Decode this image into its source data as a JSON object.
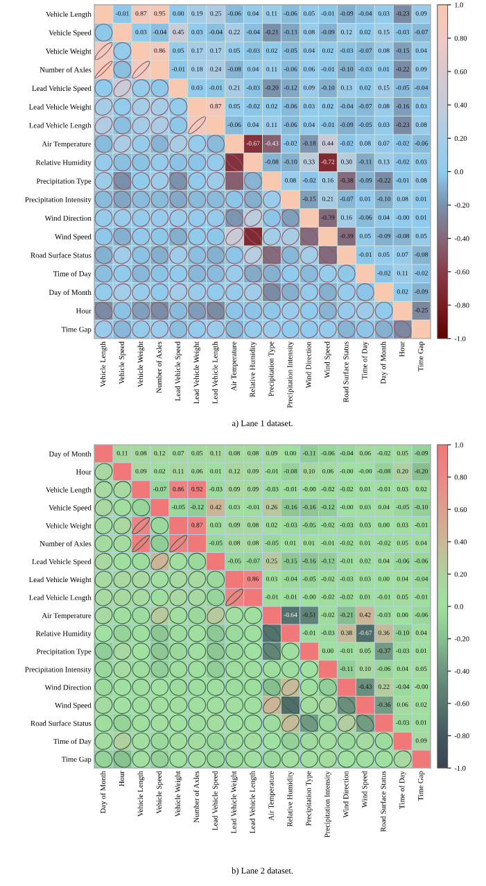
{
  "chart_data": [
    {
      "type": "heatmap",
      "categories": [
        "Vehicle Length",
        "Vehicle Speed",
        "Vehicle Weight",
        "Number of Axles",
        "Lead Vehicle Speed",
        "Lead Vehicle Weight",
        "Lead Vehicle Length",
        "Air Temperature",
        "Relative Humidity",
        "Precipitation Type",
        "Precipitation Intensity",
        "Wind Direction",
        "Wind Speed",
        "Road Surface Status",
        "Time of Day",
        "Day of Month",
        "Hour",
        "Time Gap"
      ],
      "y_categories": [
        "Vehicle Length",
        "Vehicle Speed",
        "Vehicle Weight",
        "Number of Axles",
        "Lead Vehicle Speed",
        "Lead Vehicle Weight",
        "Lead Vehicle Length",
        "Air Temperature",
        "Relative Humidity",
        "Precipitation Type",
        "Precipitation Intensity",
        "Wind Direction",
        "Wind Speed",
        "Road Surface Status",
        "Time of Day",
        "Day of Month",
        "Hour",
        "Time Gap"
      ],
      "cells": [
        [
          1,
          -0.01,
          0.87,
          0.95,
          0.0,
          0.19,
          0.25,
          -0.06,
          0.04,
          0.11,
          -0.06,
          0.05,
          -0.01,
          -0.09,
          -0.04,
          0.03,
          -0.23,
          0.09
        ],
        [
          -0.01,
          1,
          0.03,
          -0.04,
          0.45,
          0.03,
          -0.04,
          0.22,
          -0.04,
          -0.21,
          -0.13,
          0.08,
          -0.09,
          0.12,
          0.02,
          0.15,
          -0.03,
          -0.07
        ],
        [
          0.87,
          0.03,
          1,
          0.86,
          0.05,
          0.17,
          0.17,
          0.05,
          -0.03,
          0.02,
          -0.05,
          0.04,
          0.02,
          -0.03,
          -0.07,
          0.08,
          -0.15,
          0.04
        ],
        [
          0.95,
          -0.04,
          0.86,
          1,
          -0.01,
          0.18,
          0.24,
          -0.08,
          0.04,
          0.11,
          -0.06,
          0.06,
          -0.01,
          -0.1,
          -0.03,
          0.01,
          -0.22,
          0.09
        ],
        [
          0.0,
          0.45,
          0.05,
          -0.01,
          1,
          0.03,
          -0.01,
          0.21,
          -0.03,
          -0.2,
          -0.12,
          0.09,
          -0.1,
          0.13,
          0.02,
          0.15,
          -0.05,
          -0.04
        ],
        [
          0.19,
          0.03,
          0.17,
          0.18,
          0.03,
          1,
          0.87,
          0.05,
          -0.02,
          0.02,
          -0.06,
          0.03,
          0.02,
          -0.04,
          -0.07,
          0.08,
          -0.16,
          0.03
        ],
        [
          0.25,
          -0.04,
          0.17,
          0.24,
          -0.01,
          0.87,
          1,
          -0.06,
          0.04,
          0.11,
          -0.06,
          0.04,
          -0.01,
          -0.09,
          -0.05,
          0.03,
          -0.23,
          0.08
        ],
        [
          -0.06,
          0.22,
          0.05,
          -0.08,
          0.21,
          0.05,
          -0.06,
          1,
          -0.67,
          -0.43,
          -0.02,
          -0.18,
          0.44,
          -0.02,
          0.08,
          0.07,
          -0.02,
          -0.06
        ],
        [
          0.04,
          -0.04,
          -0.03,
          0.04,
          -0.03,
          -0.02,
          0.04,
          -0.67,
          1,
          -0.08,
          -0.1,
          0.33,
          -0.72,
          0.3,
          -0.11,
          0.13,
          -0.02,
          0.03
        ],
        [
          0.11,
          -0.21,
          0.02,
          0.11,
          -0.2,
          0.02,
          0.11,
          -0.43,
          -0.08,
          1,
          0.08,
          -0.02,
          0.16,
          -0.38,
          -0.09,
          -0.22,
          -0.01,
          0.08
        ],
        [
          -0.06,
          -0.13,
          -0.05,
          -0.06,
          -0.12,
          -0.06,
          -0.06,
          -0.02,
          -0.1,
          0.08,
          1,
          -0.15,
          0.21,
          -0.07,
          0.01,
          -0.1,
          0.08,
          0.01
        ],
        [
          0.05,
          0.08,
          0.04,
          0.06,
          0.09,
          0.03,
          0.04,
          -0.18,
          0.33,
          -0.02,
          -0.15,
          1,
          -0.39,
          0.16,
          -0.06,
          0.04,
          -0.0,
          0.01
        ],
        [
          -0.01,
          -0.09,
          0.02,
          -0.01,
          -0.1,
          0.02,
          -0.01,
          0.44,
          -0.72,
          0.16,
          0.21,
          -0.39,
          1,
          -0.39,
          0.05,
          -0.09,
          -0.08,
          0.05
        ],
        [
          -0.09,
          0.12,
          -0.03,
          -0.1,
          0.13,
          -0.04,
          -0.09,
          -0.02,
          0.3,
          -0.38,
          -0.07,
          0.16,
          -0.39,
          1,
          -0.01,
          0.05,
          0.07,
          -0.08
        ],
        [
          -0.04,
          0.02,
          -0.07,
          -0.03,
          0.02,
          -0.07,
          -0.05,
          0.08,
          -0.11,
          -0.09,
          0.01,
          -0.06,
          0.05,
          -0.01,
          1,
          -0.02,
          0.11,
          -0.02
        ],
        [
          0.03,
          0.15,
          0.08,
          0.01,
          0.15,
          0.08,
          0.03,
          0.07,
          0.13,
          -0.22,
          -0.1,
          0.04,
          -0.09,
          0.05,
          -0.02,
          1,
          0.02,
          -0.09
        ],
        [
          -0.23,
          -0.03,
          -0.15,
          -0.22,
          -0.05,
          -0.16,
          -0.23,
          -0.02,
          -0.02,
          -0.01,
          0.08,
          -0.0,
          -0.08,
          0.07,
          0.11,
          0.02,
          1,
          -0.25
        ],
        [
          0.09,
          -0.07,
          0.04,
          0.09,
          -0.04,
          0.03,
          0.08,
          -0.06,
          0.03,
          0.08,
          0.01,
          0.01,
          0.05,
          -0.08,
          -0.02,
          -0.09,
          -0.25,
          1
        ]
      ],
      "cell_labels": [
        [
          null,
          "-0.01",
          "0.87",
          "0.95",
          "0.00",
          "0.19",
          "0.25",
          "-0.06",
          "0.04",
          "0.11",
          "-0.06",
          "0.05",
          "-0.01",
          "-0.09",
          "-0.04",
          "0.03",
          "-0.23",
          "0.09"
        ],
        [
          null,
          null,
          "0.03",
          "-0.04",
          "0.45",
          "0.03",
          "-0.04",
          "0.22",
          "-0.04",
          "-0.21",
          "-0.13",
          "0.08",
          "-0.09",
          "0.12",
          "0.02",
          "0.15",
          "-0.03",
          "-0.07"
        ],
        [
          null,
          null,
          null,
          "0.86",
          "0.05",
          "0.17",
          "0.17",
          "0.05",
          "-0.03",
          "0.02",
          "-0.05",
          "0.04",
          "0.02",
          "-0.03",
          "-0.07",
          "0.08",
          "-0.15",
          "0.04"
        ],
        [
          null,
          null,
          null,
          null,
          "-0.01",
          "0.18",
          "0.24",
          "-0.08",
          "0.04",
          "0.11",
          "-0.06",
          "0.06",
          "-0.01",
          "-0.10",
          "-0.03",
          "0.01",
          "-0.22",
          "0.09"
        ],
        [
          null,
          null,
          null,
          null,
          null,
          "0.03",
          "-0.01",
          "0.21",
          "-0.03",
          "-0.20",
          "-0.12",
          "0.09",
          "-0.10",
          "0.13",
          "0.02",
          "0.15",
          "-0.05",
          "-0.04"
        ],
        [
          null,
          null,
          null,
          null,
          null,
          null,
          "0.87",
          "0.05",
          "-0.02",
          "0.02",
          "-0.06",
          "0.03",
          "0.02",
          "-0.04",
          "-0.07",
          "0.08",
          "-0.16",
          "0.03"
        ],
        [
          null,
          null,
          null,
          null,
          null,
          null,
          null,
          "-0.06",
          "0.04",
          "0.11",
          "-0.06",
          "0.04",
          "-0.01",
          "-0.09",
          "-0.05",
          "0.03",
          "-0.23",
          "0.08"
        ],
        [
          null,
          null,
          null,
          null,
          null,
          null,
          null,
          null,
          "-0.67",
          "-0.43",
          "-0.02",
          "-0.18",
          "0.44",
          "-0.02",
          "0.08",
          "0.07",
          "-0.02",
          "-0.06"
        ],
        [
          null,
          null,
          null,
          null,
          null,
          null,
          null,
          null,
          null,
          "-0.08",
          "-0.10",
          "0.33",
          "-0.72",
          "0.30",
          "-0.11",
          "0.13",
          "-0.02",
          "0.03"
        ],
        [
          null,
          null,
          null,
          null,
          null,
          null,
          null,
          null,
          null,
          null,
          "0.08",
          "-0.02",
          "0.16",
          "-0.38",
          "-0.09",
          "-0.22",
          "-0.01",
          "0.08"
        ],
        [
          null,
          null,
          null,
          null,
          null,
          null,
          null,
          null,
          null,
          null,
          null,
          "-0.15",
          "0.21",
          "-0.07",
          "0.01",
          "-0.10",
          "0.08",
          "0.01"
        ],
        [
          null,
          null,
          null,
          null,
          null,
          null,
          null,
          null,
          null,
          null,
          null,
          null,
          "-0.39",
          "0.16",
          "-0.06",
          "0.04",
          "-0.00",
          "0.01"
        ],
        [
          null,
          null,
          null,
          null,
          null,
          null,
          null,
          null,
          null,
          null,
          null,
          null,
          null,
          "-0.39",
          "0.05",
          "-0.09",
          "-0.08",
          "0.05"
        ],
        [
          null,
          null,
          null,
          null,
          null,
          null,
          null,
          null,
          null,
          null,
          null,
          null,
          null,
          null,
          "-0.01",
          "0.05",
          "0.07",
          "-0.08"
        ],
        [
          null,
          null,
          null,
          null,
          null,
          null,
          null,
          null,
          null,
          null,
          null,
          null,
          null,
          null,
          null,
          "-0.02",
          "0.11",
          "-0.02"
        ],
        [
          null,
          null,
          null,
          null,
          null,
          null,
          null,
          null,
          null,
          null,
          null,
          null,
          null,
          null,
          null,
          null,
          "0.02",
          "-0.09"
        ],
        [
          null,
          null,
          null,
          null,
          null,
          null,
          null,
          null,
          null,
          null,
          null,
          null,
          null,
          null,
          null,
          null,
          null,
          "-0.25"
        ],
        [
          null,
          null,
          null,
          null,
          null,
          null,
          null,
          null,
          null,
          null,
          null,
          null,
          null,
          null,
          null,
          null,
          null,
          null
        ]
      ],
      "clim": [
        -1,
        1
      ],
      "cticks": [
        {
          "value": 1,
          "label": "1.0"
        },
        {
          "value": 0.8,
          "label": "0.80"
        },
        {
          "value": 0.6,
          "label": "0.60"
        },
        {
          "value": 0.4,
          "label": "0.40"
        },
        {
          "value": 0.2,
          "label": "0.20"
        },
        {
          "value": 0,
          "label": "0.0"
        },
        {
          "value": -0.2,
          "label": "-0.20"
        },
        {
          "value": -0.4,
          "label": "-0.40"
        },
        {
          "value": -0.6,
          "label": "-0.60"
        },
        {
          "value": -0.8,
          "label": "-0.80"
        },
        {
          "value": -1,
          "label": "-1.0"
        }
      ],
      "grid": true,
      "annotations": [
        "a) Lane 1 dataset."
      ]
    },
    {
      "type": "heatmap",
      "categories": [
        "Day of Month",
        "Hour",
        "Vehicle Length",
        "Vehicle Speed",
        "Vehicle Weight",
        "Number of Axles",
        "Lead Vehicle Speed",
        "Lead Vehicle Weight",
        "Lead Vehicle Length",
        "Air Temperature",
        "Relative Humidity",
        "Precipitation Type",
        "Precipitation Intensity",
        "Wind Direction",
        "Wind Speed",
        "Road Surface Status",
        "Time of Day",
        "Time Gap"
      ],
      "y_categories": [
        "Day of Month",
        "Hour",
        "Vehicle Length",
        "Vehicle Speed",
        "Vehicle Weight",
        "Number of Axles",
        "Lead Vehicle Speed",
        "Lead Vehicle Weight",
        "Lead Vehicle Length",
        "Air Temperature",
        "Relative Humidity",
        "Precipitation Type",
        "Precipitation Intensity",
        "Wind Direction",
        "Wind Speed",
        "Road Surface Status",
        "Time of Day",
        "Time Gap"
      ],
      "cells": [
        [
          1,
          0.11,
          0.08,
          0.12,
          0.07,
          0.05,
          0.11,
          0.08,
          0.08,
          0.09,
          0.0,
          -0.11,
          -0.06,
          -0.04,
          0.06,
          -0.02,
          0.05,
          -0.09
        ],
        [
          0.11,
          1,
          0.09,
          0.02,
          0.11,
          0.06,
          0.01,
          0.12,
          0.09,
          -0.01,
          -0.08,
          0.1,
          0.06,
          -0.0,
          -0.0,
          -0.08,
          0.2,
          -0.2
        ],
        [
          0.08,
          0.09,
          1,
          -0.07,
          0.86,
          0.92,
          -0.03,
          0.09,
          0.09,
          -0.03,
          -0.01,
          -0.0,
          -0.02,
          -0.02,
          0.01,
          -0.01,
          0.03,
          0.02
        ],
        [
          0.12,
          0.02,
          -0.07,
          1,
          -0.05,
          -0.12,
          0.42,
          0.03,
          -0.01,
          0.26,
          -0.16,
          -0.16,
          -0.12,
          -0.0,
          0.03,
          0.04,
          -0.05,
          -0.1
        ],
        [
          0.07,
          0.11,
          0.86,
          -0.05,
          1,
          0.87,
          0.03,
          0.09,
          0.08,
          0.02,
          -0.03,
          -0.05,
          -0.02,
          -0.03,
          0.03,
          0.0,
          0.03,
          -0.01
        ],
        [
          0.05,
          0.06,
          0.92,
          -0.12,
          0.87,
          1,
          -0.05,
          0.08,
          0.08,
          -0.05,
          0.01,
          0.01,
          -0.01,
          -0.02,
          0.01,
          -0.02,
          0.05,
          0.04
        ],
        [
          0.11,
          0.01,
          -0.03,
          0.42,
          0.03,
          -0.05,
          1,
          -0.05,
          -0.07,
          0.25,
          -0.15,
          -0.16,
          -0.12,
          -0.01,
          0.02,
          0.04,
          -0.06,
          -0.06
        ],
        [
          0.08,
          0.12,
          0.09,
          0.03,
          0.09,
          0.08,
          -0.05,
          1,
          0.86,
          0.03,
          -0.04,
          -0.05,
          -0.02,
          -0.03,
          0.03,
          0.0,
          0.04,
          -0.04
        ],
        [
          0.08,
          0.09,
          0.09,
          -0.01,
          0.08,
          0.08,
          -0.07,
          0.86,
          1,
          -0.01,
          -0.01,
          -0.0,
          -0.02,
          -0.02,
          0.01,
          -0.01,
          0.05,
          -0.01
        ],
        [
          0.09,
          -0.01,
          -0.03,
          0.26,
          0.02,
          -0.05,
          0.25,
          0.03,
          -0.01,
          1,
          -0.64,
          -0.51,
          -0.02,
          -0.21,
          0.42,
          -0.03,
          0.0,
          -0.06
        ],
        [
          0.0,
          -0.08,
          -0.01,
          -0.16,
          -0.03,
          0.01,
          -0.15,
          -0.04,
          -0.01,
          -0.64,
          1,
          -0.01,
          -0.03,
          0.38,
          -0.67,
          0.36,
          -0.1,
          0.04
        ],
        [
          -0.11,
          0.1,
          -0.0,
          -0.16,
          -0.05,
          0.01,
          -0.16,
          -0.05,
          -0.0,
          -0.51,
          -0.01,
          1,
          0.0,
          -0.01,
          0.05,
          -0.37,
          -0.03,
          0.01
        ],
        [
          -0.06,
          0.06,
          -0.02,
          -0.12,
          -0.02,
          -0.01,
          -0.12,
          -0.02,
          -0.02,
          -0.02,
          -0.03,
          0.0,
          1,
          -0.11,
          0.1,
          -0.06,
          0.04,
          0.05
        ],
        [
          -0.04,
          -0.0,
          -0.02,
          -0.0,
          -0.03,
          -0.02,
          -0.01,
          -0.03,
          -0.02,
          -0.21,
          0.38,
          -0.01,
          -0.11,
          1,
          -0.43,
          0.22,
          -0.04,
          -0.0
        ],
        [
          0.06,
          -0.0,
          0.01,
          0.03,
          0.03,
          0.01,
          0.02,
          0.03,
          0.01,
          0.42,
          -0.67,
          0.05,
          0.1,
          -0.43,
          1,
          -0.36,
          0.06,
          0.02
        ],
        [
          -0.02,
          -0.08,
          -0.01,
          0.04,
          0.0,
          -0.02,
          0.04,
          0.0,
          -0.01,
          -0.03,
          0.36,
          -0.37,
          -0.06,
          0.22,
          -0.36,
          1,
          -0.03,
          0.01
        ],
        [
          0.05,
          0.2,
          0.03,
          -0.05,
          0.03,
          0.05,
          -0.06,
          0.04,
          0.05,
          0.0,
          -0.1,
          -0.03,
          0.04,
          -0.04,
          0.06,
          -0.03,
          1,
          0.09
        ],
        [
          -0.09,
          -0.2,
          0.02,
          -0.1,
          -0.01,
          0.04,
          -0.06,
          -0.04,
          -0.01,
          -0.06,
          0.04,
          0.01,
          0.05,
          -0.0,
          0.02,
          0.01,
          0.09,
          1
        ]
      ],
      "cell_labels": [
        [
          null,
          "0.11",
          "0.08",
          "0.12",
          "0.07",
          "0.05",
          "0.11",
          "0.08",
          "0.08",
          "0.09",
          "0.00",
          "-0.11",
          "-0.06",
          "-0.04",
          "0.06",
          "-0.02",
          "0.05",
          "-0.09"
        ],
        [
          null,
          null,
          "0.09",
          "0.02",
          "0.11",
          "0.06",
          "0.01",
          "0.12",
          "0.09",
          "-0.01",
          "-0.08",
          "0.10",
          "0.06",
          "-0.00",
          "-0.00",
          "-0.08",
          "0.20",
          "-0.20"
        ],
        [
          null,
          null,
          null,
          "-0.07",
          "0.86",
          "0.92",
          "-0.03",
          "0.09",
          "0.09",
          "-0.03",
          "-0.01",
          "-0.00",
          "-0.02",
          "-0.02",
          "0.01",
          "-0.01",
          "0.03",
          "0.02"
        ],
        [
          null,
          null,
          null,
          null,
          "-0.05",
          "-0.12",
          "0.42",
          "0.03",
          "-0.01",
          "0.26",
          "-0.16",
          "-0.16",
          "-0.12",
          "-0.00",
          "0.03",
          "0.04",
          "-0.05",
          "-0.10"
        ],
        [
          null,
          null,
          null,
          null,
          null,
          "0.87",
          "0.03",
          "0.09",
          "0.08",
          "0.02",
          "-0.03",
          "-0.05",
          "-0.02",
          "-0.03",
          "0.03",
          "0.00",
          "0.03",
          "-0.01"
        ],
        [
          null,
          null,
          null,
          null,
          null,
          null,
          "-0.05",
          "0.08",
          "0.08",
          "-0.05",
          "0.01",
          "0.01",
          "-0.01",
          "-0.02",
          "0.01",
          "-0.02",
          "0.05",
          "0.04"
        ],
        [
          null,
          null,
          null,
          null,
          null,
          null,
          null,
          "-0.05",
          "-0.07",
          "0.25",
          "-0.15",
          "-0.16",
          "-0.12",
          "-0.01",
          "0.02",
          "0.04",
          "-0.06",
          "-0.06"
        ],
        [
          null,
          null,
          null,
          null,
          null,
          null,
          null,
          null,
          "0.86",
          "0.03",
          "-0.04",
          "-0.05",
          "-0.02",
          "-0.03",
          "0.03",
          "0.00",
          "0.04",
          "-0.04"
        ],
        [
          null,
          null,
          null,
          null,
          null,
          null,
          null,
          null,
          null,
          "-0.01",
          "-0.01",
          "-0.00",
          "-0.02",
          "-0.02",
          "0.01",
          "-0.01",
          "0.05",
          "-0.01"
        ],
        [
          null,
          null,
          null,
          null,
          null,
          null,
          null,
          null,
          null,
          null,
          "-0.64",
          "-0.51",
          "-0.02",
          "-0.21",
          "0.42",
          "-0.03",
          "0.00",
          "-0.06"
        ],
        [
          null,
          null,
          null,
          null,
          null,
          null,
          null,
          null,
          null,
          null,
          null,
          "-0.01",
          "-0.03",
          "0.38",
          "-0.67",
          "0.36",
          "-0.10",
          "0.04"
        ],
        [
          null,
          null,
          null,
          null,
          null,
          null,
          null,
          null,
          null,
          null,
          null,
          null,
          "0.00",
          "-0.01",
          "0.05",
          "-0.37",
          "-0.03",
          "0.01"
        ],
        [
          null,
          null,
          null,
          null,
          null,
          null,
          null,
          null,
          null,
          null,
          null,
          null,
          null,
          "-0.11",
          "0.10",
          "-0.06",
          "0.04",
          "0.05"
        ],
        [
          null,
          null,
          null,
          null,
          null,
          null,
          null,
          null,
          null,
          null,
          null,
          null,
          null,
          null,
          "-0.43",
          "0.22",
          "-0.04",
          "-0.00"
        ],
        [
          null,
          null,
          null,
          null,
          null,
          null,
          null,
          null,
          null,
          null,
          null,
          null,
          null,
          null,
          null,
          "-0.36",
          "0.06",
          "0.02"
        ],
        [
          null,
          null,
          null,
          null,
          null,
          null,
          null,
          null,
          null,
          null,
          null,
          null,
          null,
          null,
          null,
          null,
          "-0.03",
          "0.01"
        ],
        [
          null,
          null,
          null,
          null,
          null,
          null,
          null,
          null,
          null,
          null,
          null,
          null,
          null,
          null,
          null,
          null,
          null,
          "0.09"
        ],
        [
          null,
          null,
          null,
          null,
          null,
          null,
          null,
          null,
          null,
          null,
          null,
          null,
          null,
          null,
          null,
          null,
          null,
          null
        ]
      ],
      "clim": [
        -1,
        1
      ],
      "cticks": [
        {
          "value": 1,
          "label": "1.0"
        },
        {
          "value": 0.8,
          "label": "0.80"
        },
        {
          "value": 0.6,
          "label": "0.60"
        },
        {
          "value": 0.4,
          "label": "0.40"
        },
        {
          "value": 0.2,
          "label": "0.20"
        },
        {
          "value": 0,
          "label": "0.0"
        },
        {
          "value": -0.2,
          "label": "-0.20"
        },
        {
          "value": -0.4,
          "label": "-0.40"
        },
        {
          "value": -0.6,
          "label": "-0.60"
        },
        {
          "value": -0.8,
          "label": "-0.80"
        },
        {
          "value": -1,
          "label": "-1.0"
        }
      ],
      "grid": true,
      "annotations": [
        "b) Lane 2 dataset."
      ]
    }
  ]
}
